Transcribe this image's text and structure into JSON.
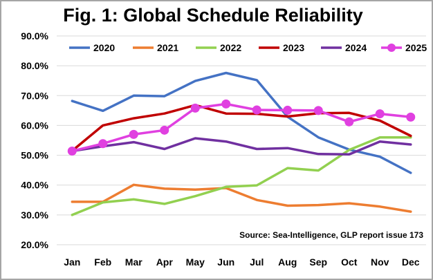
{
  "chart_data": {
    "type": "line",
    "title": "Fig. 1: Global Schedule Reliability",
    "xlabel": "",
    "ylabel": "",
    "categories": [
      "Jan",
      "Feb",
      "Mar",
      "Apr",
      "May",
      "Jun",
      "Jul",
      "Aug",
      "Sep",
      "Oct",
      "Nov",
      "Dec"
    ],
    "ylim": [
      20.0,
      90.0
    ],
    "yticks": [
      "20.0%",
      "30.0%",
      "40.0%",
      "50.0%",
      "60.0%",
      "70.0%",
      "80.0%",
      "90.0%"
    ],
    "grid": true,
    "legend": "top",
    "source": "Source: Sea-Intelligence, GLP report issue 173",
    "series": [
      {
        "name": "2020",
        "color": "#4472c4",
        "markers": false,
        "values": [
          68.2,
          64.9,
          70.0,
          69.8,
          74.9,
          77.6,
          75.2,
          62.9,
          56.0,
          51.9,
          49.5,
          44.1
        ]
      },
      {
        "name": "2021",
        "color": "#ed7d31",
        "markers": false,
        "values": [
          34.4,
          34.4,
          40.1,
          38.8,
          38.5,
          39.0,
          35.0,
          33.1,
          33.3,
          33.9,
          32.8,
          31.1
        ]
      },
      {
        "name": "2022",
        "color": "#92d050",
        "markers": false,
        "values": [
          30.0,
          34.2,
          35.2,
          33.7,
          36.3,
          39.4,
          39.9,
          45.7,
          44.9,
          51.8,
          56.0,
          56.0
        ]
      },
      {
        "name": "2023",
        "color": "#c00000",
        "markers": false,
        "values": [
          51.5,
          60.0,
          62.4,
          64.0,
          66.8,
          64.0,
          63.9,
          63.0,
          64.1,
          64.2,
          61.6,
          56.5
        ]
      },
      {
        "name": "2024",
        "color": "#7030a0",
        "markers": false,
        "values": [
          51.4,
          53.0,
          54.4,
          52.1,
          55.7,
          54.6,
          52.1,
          52.4,
          50.4,
          50.3,
          54.6,
          53.6
        ]
      },
      {
        "name": "2025",
        "color": "#e040e0",
        "markers": true,
        "values": [
          51.4,
          53.9,
          57.0,
          58.4,
          65.8,
          67.2,
          65.2,
          65.1,
          65.0,
          61.2,
          63.9,
          62.8
        ]
      }
    ]
  }
}
